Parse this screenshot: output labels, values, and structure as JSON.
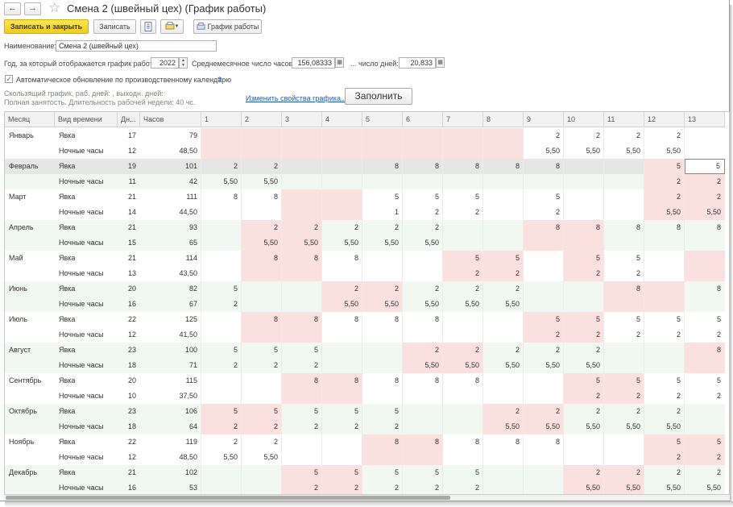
{
  "window": {
    "title": "Смена 2 (швейный цех) (График работы)"
  },
  "toolbar": {
    "save_close": "Записать и закрыть",
    "save": "Записать",
    "schedule_btn": "График работы"
  },
  "form": {
    "name_label": "Наименование:",
    "name_value": "Смена 2 (швейный цех)",
    "year_label": "Год, за который отображается график работы:",
    "year_value": "2022",
    "avg_hours_label": "Среднемесячное число часов:",
    "avg_hours_value": "156,08333",
    "days_label": "... число дней:",
    "days_value": "20,833",
    "auto_update_label": "Автоматическое обновление по производственному календарю",
    "help_mark": "?",
    "info_line1": "Скользящий график, раб. дней: , выходн. дней:",
    "info_line2": "Полная занятость. Длительность рабочей недели: 40 чс.",
    "change_link": "Изменить свойства графика...",
    "fill_button": "Заполнить"
  },
  "table": {
    "headers": [
      "Месяц",
      "Вид времени",
      "Дн...",
      "Часов",
      "1",
      "2",
      "3",
      "4",
      "5",
      "6",
      "7",
      "8",
      "9",
      "10",
      "11",
      "12",
      "13"
    ],
    "kind_yavka": "Явка",
    "kind_night": "Ночные часы",
    "months": [
      {
        "name": "Январь",
        "yavka": {
          "days": "17",
          "hours": "79",
          "d": [
            "",
            "",
            "",
            "",
            "",
            "",
            "",
            "",
            "2",
            "2",
            "2",
            "2",
            ""
          ]
        },
        "night": {
          "days": "12",
          "hours": "48,50",
          "d": [
            "",
            "",
            "",
            "",
            "",
            "",
            "",
            "",
            "5,50",
            "5,50",
            "5,50",
            "5,50",
            ""
          ]
        }
      },
      {
        "name": "Февраль",
        "yavka": {
          "days": "19",
          "hours": "101",
          "d": [
            "2",
            "2",
            "",
            "",
            "8",
            "8",
            "8",
            "8",
            "8",
            "",
            "",
            "5",
            "5"
          ]
        },
        "night": {
          "days": "11",
          "hours": "42",
          "d": [
            "5,50",
            "5,50",
            "",
            "",
            "",
            "",
            "",
            "",
            "",
            "",
            "",
            "2",
            "2"
          ]
        }
      },
      {
        "name": "Март",
        "yavka": {
          "days": "21",
          "hours": "111",
          "d": [
            "8",
            "8",
            "",
            "",
            "5",
            "5",
            "5",
            "",
            "5",
            "",
            "",
            "2",
            "2"
          ]
        },
        "night": {
          "days": "14",
          "hours": "44,50",
          "d": [
            "",
            "",
            "",
            "",
            "1",
            "2",
            "2",
            "",
            "2",
            "",
            "",
            "5,50",
            "5,50"
          ]
        }
      },
      {
        "name": "Апрель",
        "yavka": {
          "days": "21",
          "hours": "93",
          "d": [
            "",
            "2",
            "2",
            "2",
            "2",
            "2",
            "",
            "",
            "8",
            "8",
            "8",
            "8",
            "8"
          ]
        },
        "night": {
          "days": "15",
          "hours": "65",
          "d": [
            "",
            "5,50",
            "5,50",
            "5,50",
            "5,50",
            "5,50",
            "",
            "",
            "",
            "",
            "",
            "",
            ""
          ]
        }
      },
      {
        "name": "Май",
        "yavka": {
          "days": "21",
          "hours": "114",
          "d": [
            "",
            "8",
            "8",
            "8",
            "",
            "",
            "5",
            "5",
            "",
            "5",
            "5",
            "",
            ""
          ]
        },
        "night": {
          "days": "13",
          "hours": "43,50",
          "d": [
            "",
            "",
            "",
            "",
            "",
            "",
            "2",
            "2",
            "",
            "2",
            "2",
            "",
            ""
          ]
        }
      },
      {
        "name": "Июнь",
        "yavka": {
          "days": "20",
          "hours": "82",
          "d": [
            "5",
            "",
            "",
            "2",
            "2",
            "2",
            "2",
            "2",
            "",
            "",
            "8",
            "",
            "8"
          ]
        },
        "night": {
          "days": "16",
          "hours": "67",
          "d": [
            "2",
            "",
            "",
            "5,50",
            "5,50",
            "5,50",
            "5,50",
            "5,50",
            "",
            "",
            "",
            "",
            ""
          ]
        }
      },
      {
        "name": "Июль",
        "yavka": {
          "days": "22",
          "hours": "125",
          "d": [
            "",
            "8",
            "8",
            "8",
            "8",
            "8",
            "",
            "",
            "5",
            "5",
            "5",
            "5",
            "5"
          ]
        },
        "night": {
          "days": "12",
          "hours": "41,50",
          "d": [
            "",
            "",
            "",
            "",
            "",
            "",
            "",
            "",
            "2",
            "2",
            "2",
            "2",
            "2"
          ]
        }
      },
      {
        "name": "Август",
        "yavka": {
          "days": "23",
          "hours": "100",
          "d": [
            "5",
            "5",
            "5",
            "",
            "",
            "2",
            "2",
            "2",
            "2",
            "2",
            "",
            "",
            "8"
          ]
        },
        "night": {
          "days": "18",
          "hours": "71",
          "d": [
            "2",
            "2",
            "2",
            "",
            "",
            "5,50",
            "5,50",
            "5,50",
            "5,50",
            "5,50",
            "",
            "",
            ""
          ]
        }
      },
      {
        "name": "Сентябрь",
        "yavka": {
          "days": "20",
          "hours": "115",
          "d": [
            "",
            "",
            "8",
            "8",
            "8",
            "8",
            "8",
            "",
            "",
            "5",
            "5",
            "5",
            "5"
          ]
        },
        "night": {
          "days": "10",
          "hours": "37,50",
          "d": [
            "",
            "",
            "",
            "",
            "",
            "",
            "",
            "",
            "",
            "2",
            "2",
            "2",
            "2"
          ]
        }
      },
      {
        "name": "Октябрь",
        "yavka": {
          "days": "23",
          "hours": "106",
          "d": [
            "5",
            "5",
            "5",
            "5",
            "5",
            "",
            "",
            "2",
            "2",
            "2",
            "2",
            "2",
            ""
          ]
        },
        "night": {
          "days": "18",
          "hours": "64",
          "d": [
            "2",
            "2",
            "2",
            "2",
            "2",
            "",
            "",
            "5,50",
            "5,50",
            "5,50",
            "5,50",
            "5,50",
            ""
          ]
        }
      },
      {
        "name": "Ноябрь",
        "yavka": {
          "days": "22",
          "hours": "119",
          "d": [
            "2",
            "2",
            "",
            "",
            "8",
            "8",
            "8",
            "8",
            "8",
            "",
            "",
            "5",
            "5"
          ]
        },
        "night": {
          "days": "12",
          "hours": "48,50",
          "d": [
            "5,50",
            "5,50",
            "",
            "",
            "",
            "",
            "",
            "",
            "",
            "",
            "",
            "2",
            "2"
          ]
        }
      },
      {
        "name": "Декабрь",
        "yavka": {
          "days": "21",
          "hours": "102",
          "d": [
            "",
            "",
            "5",
            "5",
            "5",
            "5",
            "5",
            "",
            "",
            "2",
            "2",
            "2",
            "2"
          ]
        },
        "night": {
          "days": "16",
          "hours": "53",
          "d": [
            "",
            "",
            "2",
            "2",
            "2",
            "2",
            "2",
            "",
            "",
            "5,50",
            "5,50",
            "5,50",
            "5,50"
          ]
        }
      }
    ],
    "offdays": [
      [
        1,
        2,
        3,
        4,
        5,
        6,
        7,
        8
      ],
      [
        12,
        13
      ],
      [
        3,
        4,
        12,
        13
      ],
      [
        2,
        3,
        9,
        10
      ],
      [
        2,
        3,
        7,
        8,
        10,
        13
      ],
      [
        4,
        5,
        11,
        12
      ],
      [
        2,
        3,
        9,
        10
      ],
      [
        6,
        7,
        13
      ],
      [
        3,
        4,
        10,
        11
      ],
      [
        1,
        2,
        8,
        9
      ],
      [
        5,
        6,
        12,
        13
      ],
      [
        3,
        4,
        10,
        11
      ]
    ]
  },
  "colors": {
    "weekend": "#fbe0e0",
    "row_even": "#ffffff",
    "row_odd": "#f1f7f1",
    "selected": "#e6e6e6"
  }
}
